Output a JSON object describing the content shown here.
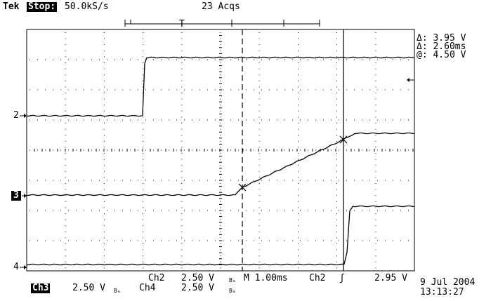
{
  "header": {
    "brand": "Tek",
    "run_state": "Stop:",
    "sample_rate": "50.0kS/s",
    "acquisitions": "23 Acqs",
    "trigger_pos_marker": "T"
  },
  "cursor_readout": {
    "delta_v": "Δ: 3.95 V",
    "delta_t": "Δ: 2.60ms",
    "at_v": "@: 4.50 V"
  },
  "channel_markers": {
    "ch2": "2",
    "ch3": "3",
    "ch4": "4"
  },
  "footer": {
    "ch3_label": "Ch3",
    "ch3_scale": "2.50 V",
    "bw_symbol": "Bₘ",
    "ch2_label": "Ch2",
    "ch2_scale": "2.50 V",
    "ch4_label": "Ch4",
    "ch4_scale": "2.50 V",
    "timebase": "M 1.00ms",
    "trig_source": "Ch2",
    "trig_slope": "ʃ",
    "trig_level": "2.95 V",
    "date": "9 Jul 2004",
    "time": "13:13:27"
  },
  "colors": {
    "trace": "#000000",
    "grid": "#000000",
    "background": "#ffffff"
  }
}
